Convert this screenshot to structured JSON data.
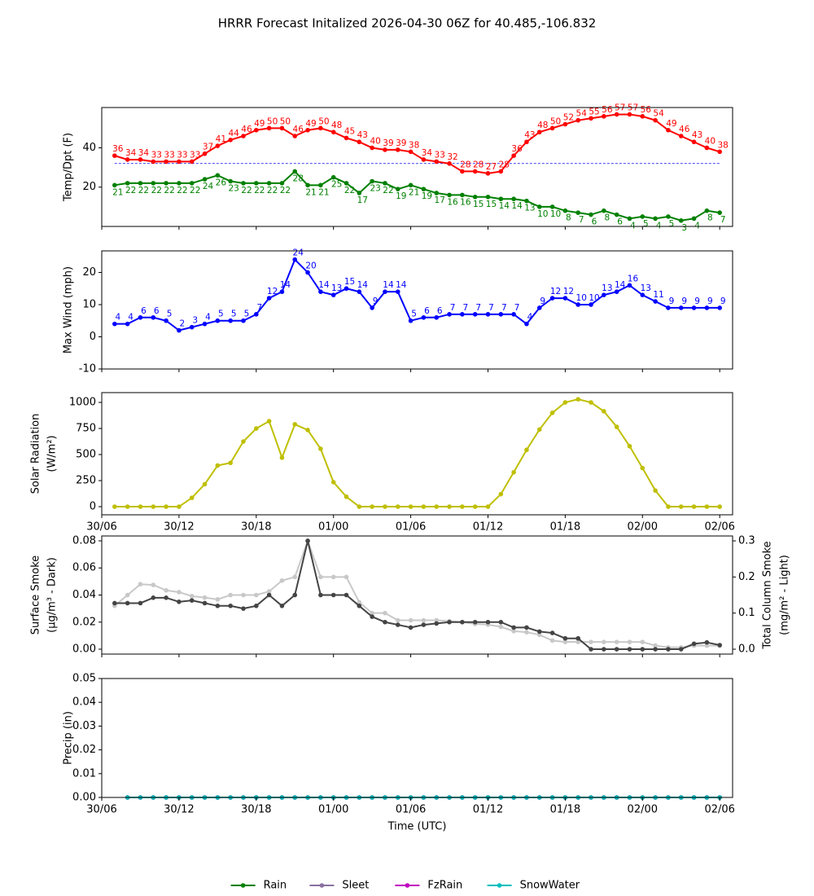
{
  "title": "HRRR Forecast Initalized 2026-04-30 06Z for 40.485,-106.832",
  "chart_data": [
    {
      "type": "line",
      "ylabel": [
        "Temp/Dpt (F)"
      ],
      "x": [
        1,
        2,
        3,
        4,
        5,
        6,
        7,
        8,
        9,
        10,
        11,
        12,
        13,
        14,
        15,
        16,
        17,
        18,
        19,
        20,
        21,
        22,
        23,
        24,
        25,
        26,
        27,
        28,
        29,
        30,
        31,
        32,
        33,
        34,
        35,
        36,
        37,
        38,
        39,
        40,
        41,
        42,
        43,
        44,
        45,
        46,
        47,
        48
      ],
      "xlim": [
        0,
        49
      ],
      "xticks": [
        0,
        6,
        12,
        18,
        24,
        30,
        36,
        42,
        48
      ],
      "ylim": [
        0,
        60.5
      ],
      "yticks": [
        20,
        40
      ],
      "hlines": [
        {
          "value": 32,
          "color": "#0000ff",
          "style": "dashed"
        }
      ],
      "data_labels": true,
      "series": [
        {
          "color": "#ff0000",
          "label_position": "above",
          "values": [
            36,
            34,
            34,
            33,
            33,
            33,
            33,
            37,
            41,
            44,
            46,
            49,
            50,
            50,
            46,
            49,
            50,
            48,
            45,
            43,
            40,
            39,
            39,
            38,
            34,
            33,
            32,
            28,
            28,
            27,
            28,
            36,
            43,
            48,
            50,
            52,
            54,
            55,
            56,
            57,
            57,
            56,
            54,
            49,
            46,
            43,
            40,
            38
          ]
        },
        {
          "color": "#008000",
          "label_position": "below",
          "values": [
            21,
            22,
            22,
            22,
            22,
            22,
            22,
            24,
            26,
            23,
            22,
            22,
            22,
            22,
            28,
            21,
            21,
            25,
            22,
            17,
            23,
            22,
            19,
            21,
            19,
            17,
            16,
            16,
            15,
            15,
            14,
            14,
            13,
            10,
            10,
            8,
            7,
            6,
            8,
            6,
            4,
            5,
            4,
            5,
            3,
            4,
            8,
            7
          ]
        }
      ]
    },
    {
      "type": "line",
      "ylabel": [
        "Max Wind (mph)"
      ],
      "x": [
        1,
        2,
        3,
        4,
        5,
        6,
        7,
        8,
        9,
        10,
        11,
        12,
        13,
        14,
        15,
        16,
        17,
        18,
        19,
        20,
        21,
        22,
        23,
        24,
        25,
        26,
        27,
        28,
        29,
        30,
        31,
        32,
        33,
        34,
        35,
        36,
        37,
        38,
        39,
        40,
        41,
        42,
        43,
        44,
        45,
        46,
        47,
        48
      ],
      "xlim": [
        0,
        49
      ],
      "xticks": [
        0,
        6,
        12,
        18,
        24,
        30,
        36,
        42,
        48
      ],
      "ylim": [
        -10,
        26.7
      ],
      "yticks": [
        -10,
        0,
        10,
        20
      ],
      "data_labels": true,
      "series": [
        {
          "color": "#0000ff",
          "label_position": "above",
          "values": [
            4,
            4,
            6,
            6,
            5,
            2,
            3,
            4,
            5,
            5,
            5,
            7,
            12,
            14,
            24,
            20,
            14,
            13,
            15,
            14,
            9,
            14,
            14,
            5,
            6,
            6,
            7,
            7,
            7,
            7,
            7,
            7,
            4,
            9,
            12,
            12,
            10,
            10,
            13,
            14,
            16,
            13,
            11,
            9,
            9,
            9,
            9,
            9
          ]
        }
      ]
    },
    {
      "type": "line",
      "ylabel": [
        "Solar Radiation",
        "(W/m²)"
      ],
      "x": [
        1,
        2,
        3,
        4,
        5,
        6,
        7,
        8,
        9,
        10,
        11,
        12,
        13,
        14,
        15,
        16,
        17,
        18,
        19,
        20,
        21,
        22,
        23,
        24,
        25,
        26,
        27,
        28,
        29,
        30,
        31,
        32,
        33,
        34,
        35,
        36,
        37,
        38,
        39,
        40,
        41,
        42,
        43,
        44,
        45,
        46,
        47,
        48
      ],
      "xlim": [
        0,
        49
      ],
      "xticks": [
        {
          "value": 0,
          "label": "30/06"
        },
        {
          "value": 6,
          "label": "30/12"
        },
        {
          "value": 12,
          "label": "30/18"
        },
        {
          "value": 18,
          "label": "01/00"
        },
        {
          "value": 24,
          "label": "01/06"
        },
        {
          "value": 30,
          "label": "01/12"
        },
        {
          "value": 36,
          "label": "01/18"
        },
        {
          "value": 42,
          "label": "02/00"
        },
        {
          "value": 48,
          "label": "02/06"
        }
      ],
      "ylim": [
        -78,
        1094
      ],
      "yticks": [
        0,
        250,
        500,
        750,
        1000
      ],
      "series": [
        {
          "color": "#bfbf00",
          "values": [
            0,
            0,
            0,
            0,
            0,
            0,
            85,
            215,
            395,
            420,
            625,
            750,
            820,
            470,
            790,
            735,
            555,
            235,
            95,
            0,
            0,
            0,
            0,
            0,
            0,
            0,
            0,
            0,
            0,
            0,
            120,
            330,
            545,
            740,
            900,
            1000,
            1030,
            1000,
            915,
            765,
            580,
            370,
            155,
            0,
            0,
            0,
            0,
            0
          ]
        }
      ]
    },
    {
      "type": "line",
      "ylabel": [
        "Surface Smoke",
        "(μg/m³ - Dark)"
      ],
      "y2label": [
        "Total Column Smoke",
        "(mg/m² - Light)"
      ],
      "x": [
        1,
        2,
        3,
        4,
        5,
        6,
        7,
        8,
        9,
        10,
        11,
        12,
        13,
        14,
        15,
        16,
        17,
        18,
        19,
        20,
        21,
        22,
        23,
        24,
        25,
        26,
        27,
        28,
        29,
        30,
        31,
        32,
        33,
        34,
        35,
        36,
        37,
        38,
        39,
        40,
        41,
        42,
        43,
        44,
        45,
        46,
        47,
        48
      ],
      "xlim": [
        0,
        49
      ],
      "xticks": [
        0,
        6,
        12,
        18,
        24,
        30,
        36,
        42,
        48
      ],
      "ylim": [
        -0.0036,
        0.0836
      ],
      "yticks": [
        {
          "value": 0,
          "label": "0.00"
        },
        0.02,
        0.04,
        0.06,
        0.08
      ],
      "y2lim": [
        -0.0135,
        0.3136
      ],
      "y2ticks": [
        {
          "value": 0,
          "label": "0.0"
        },
        0.1,
        0.2,
        0.3
      ],
      "series": [
        {
          "color": "#c8c8c8",
          "axis": "y2",
          "values": [
            0.12,
            0.15,
            0.18,
            0.178,
            0.163,
            0.158,
            0.147,
            0.143,
            0.138,
            0.15,
            0.15,
            0.15,
            0.16,
            0.19,
            0.2,
            0.3,
            0.2,
            0.2,
            0.2,
            0.13,
            0.1,
            0.1,
            0.08,
            0.08,
            0.08,
            0.08,
            0.078,
            0.075,
            0.07,
            0.068,
            0.062,
            0.05,
            0.047,
            0.04,
            0.024,
            0.02,
            0.02,
            0.02,
            0.02,
            0.02,
            0.02,
            0.02,
            0.01,
            0.005,
            0.005,
            0.01,
            0.01,
            0.01
          ]
        },
        {
          "color": "#444444",
          "values": [
            0.034,
            0.034,
            0.034,
            0.038,
            0.038,
            0.035,
            0.036,
            0.034,
            0.032,
            0.032,
            0.03,
            0.032,
            0.04,
            0.032,
            0.04,
            0.08,
            0.04,
            0.04,
            0.04,
            0.032,
            0.024,
            0.02,
            0.018,
            0.016,
            0.018,
            0.019,
            0.02,
            0.02,
            0.02,
            0.02,
            0.02,
            0.016,
            0.016,
            0.013,
            0.012,
            0.008,
            0.008,
            0,
            0,
            0,
            0,
            0,
            0,
            0,
            0,
            0.004,
            0.005,
            0.003
          ]
        }
      ]
    },
    {
      "type": "line",
      "ylabel": [
        "Precip (in)"
      ],
      "xlabel": "Time (UTC)",
      "legend": "bottom",
      "x": [
        2,
        3,
        4,
        5,
        6,
        7,
        8,
        9,
        10,
        11,
        12,
        13,
        14,
        15,
        16,
        17,
        18,
        19,
        20,
        21,
        22,
        23,
        24,
        25,
        26,
        27,
        28,
        29,
        30,
        31,
        32,
        33,
        34,
        35,
        36,
        37,
        38,
        39,
        40,
        41,
        42,
        43,
        44,
        45,
        46,
        47,
        48
      ],
      "xlim": [
        0,
        49
      ],
      "xticks": [
        {
          "value": 0,
          "label": "30/06"
        },
        {
          "value": 6,
          "label": "30/12"
        },
        {
          "value": 12,
          "label": "30/18"
        },
        {
          "value": 18,
          "label": "01/00"
        },
        {
          "value": 24,
          "label": "01/06"
        },
        {
          "value": 30,
          "label": "01/12"
        },
        {
          "value": 36,
          "label": "01/18"
        },
        {
          "value": 42,
          "label": "02/00"
        },
        {
          "value": 48,
          "label": "02/06"
        }
      ],
      "ylim": [
        0,
        0.05
      ],
      "yticks": [
        {
          "value": 0,
          "label": "0.00"
        },
        {
          "value": 0.01,
          "label": "0.01"
        },
        {
          "value": 0.02,
          "label": "0.02"
        },
        {
          "value": 0.03,
          "label": "0.03"
        },
        {
          "value": 0.04,
          "label": "0.04"
        },
        {
          "value": 0.05,
          "label": "0.05"
        }
      ],
      "series": [
        {
          "name": "Rain",
          "color": "#008000",
          "values": [
            0,
            0,
            0,
            0,
            0,
            0,
            0,
            0,
            0,
            0,
            0,
            0,
            0,
            0,
            0,
            0,
            0,
            0,
            0,
            0,
            0,
            0,
            0,
            0,
            0,
            0,
            0,
            0,
            0,
            0,
            0,
            0,
            0,
            0,
            0,
            0,
            0,
            0,
            0,
            0,
            0,
            0,
            0,
            0,
            0,
            0,
            0
          ]
        },
        {
          "name": "Sleet",
          "color": "#8a70a0",
          "values": [
            0,
            0,
            0,
            0,
            0,
            0,
            0,
            0,
            0,
            0,
            0,
            0,
            0,
            0,
            0,
            0,
            0,
            0,
            0,
            0,
            0,
            0,
            0,
            0,
            0,
            0,
            0,
            0,
            0,
            0,
            0,
            0,
            0,
            0,
            0,
            0,
            0,
            0,
            0,
            0,
            0,
            0,
            0,
            0,
            0,
            0,
            0
          ]
        },
        {
          "name": "FzRain",
          "color": "#c000c0",
          "values": [
            0,
            0,
            0,
            0,
            0,
            0,
            0,
            0,
            0,
            0,
            0,
            0,
            0,
            0,
            0,
            0,
            0,
            0,
            0,
            0,
            0,
            0,
            0,
            0,
            0,
            0,
            0,
            0,
            0,
            0,
            0,
            0,
            0,
            0,
            0,
            0,
            0,
            0,
            0,
            0,
            0,
            0,
            0,
            0,
            0,
            0,
            0
          ]
        },
        {
          "name": "SnowWater",
          "color": "#00bfbf",
          "values": [
            0,
            0,
            0,
            0,
            0,
            0,
            0,
            0,
            0,
            0,
            0,
            0,
            0,
            0,
            0,
            0,
            0,
            0,
            0,
            0,
            0,
            0,
            0,
            0,
            0,
            0,
            0,
            0,
            0,
            0,
            0,
            0,
            0,
            0,
            0,
            0,
            0,
            0,
            0,
            0,
            0,
            0,
            0,
            0,
            0,
            0,
            0
          ]
        }
      ]
    }
  ]
}
